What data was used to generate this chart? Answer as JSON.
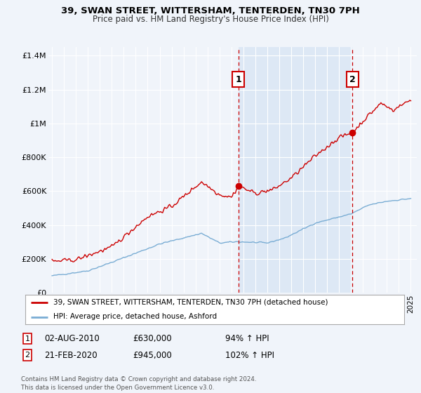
{
  "title": "39, SWAN STREET, WITTERSHAM, TENTERDEN, TN30 7PH",
  "subtitle": "Price paid vs. HM Land Registry's House Price Index (HPI)",
  "background_color": "#f0f4fa",
  "plot_bg_color": "#f0f4fa",
  "highlight_bg_color": "#dde8f5",
  "red_line_color": "#cc0000",
  "blue_line_color": "#7aadd4",
  "vline_color": "#cc0000",
  "grid_color": "#ffffff",
  "legend_label_red": "39, SWAN STREET, WITTERSHAM, TENTERDEN, TN30 7PH (detached house)",
  "legend_label_blue": "HPI: Average price, detached house, Ashford",
  "annotation1_num": "1",
  "annotation1_date": "02-AUG-2010",
  "annotation1_price": "£630,000",
  "annotation1_hpi": "94% ↑ HPI",
  "annotation1_year": 2010.58,
  "annotation1_price_val": 630000,
  "annotation2_num": "2",
  "annotation2_date": "21-FEB-2020",
  "annotation2_price": "£945,000",
  "annotation2_hpi": "102% ↑ HPI",
  "annotation2_year": 2020.13,
  "annotation2_price_val": 945000,
  "footer": "Contains HM Land Registry data © Crown copyright and database right 2024.\nThis data is licensed under the Open Government Licence v3.0.",
  "ylim": [
    0,
    1450000
  ],
  "yticks": [
    0,
    200000,
    400000,
    600000,
    800000,
    1000000,
    1200000,
    1400000
  ],
  "ytick_labels": [
    "£0",
    "£200K",
    "£400K",
    "£600K",
    "£800K",
    "£1M",
    "£1.2M",
    "£1.4M"
  ],
  "xlim_left": 1994.7,
  "xlim_right": 2025.5
}
